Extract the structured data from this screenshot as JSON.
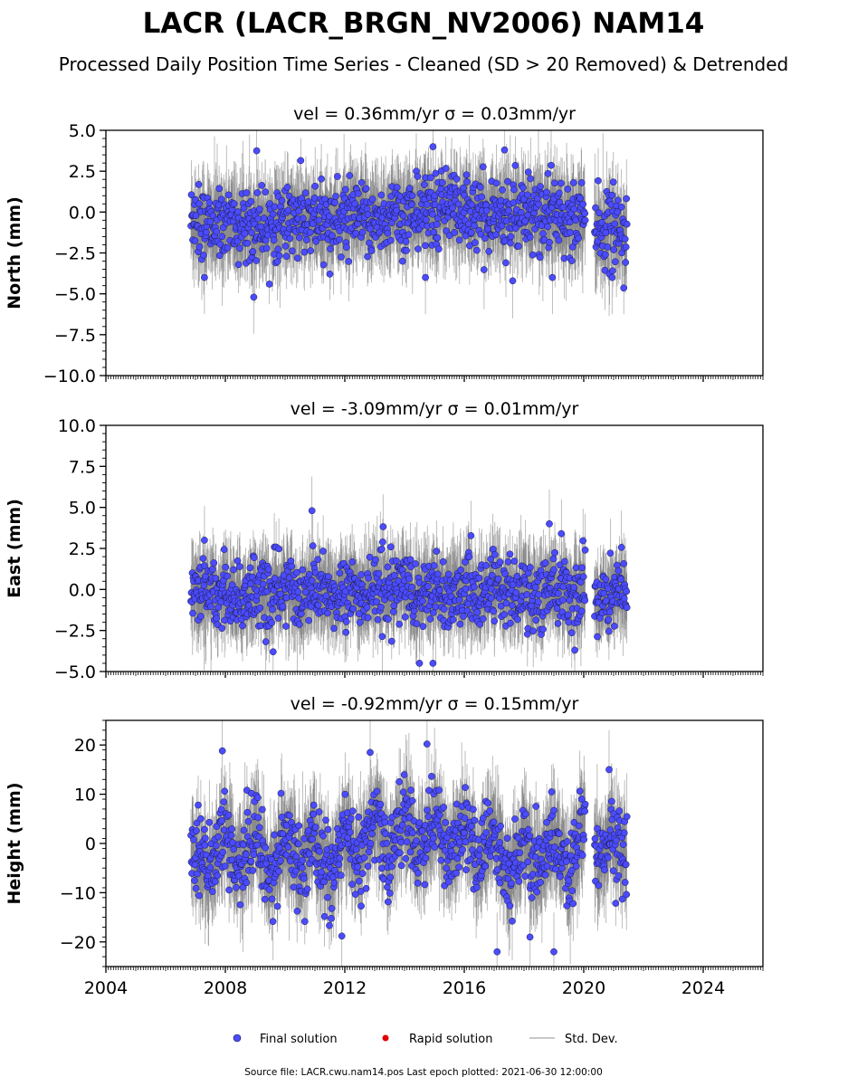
{
  "figure": {
    "title": "LACR (LACR_BRGN_NV2006) NAM14",
    "subtitle": "Processed Daily Position Time Series - Cleaned (SD > 20 Removed) & Detrended",
    "footer": "Source file: LACR.cwu.nam14.pos  Last epoch plotted: 2021-06-30 12:00:00"
  },
  "legend": {
    "placement": "bottom-center",
    "items": [
      {
        "label": "Final solution",
        "color": "#4b4bff"
      },
      {
        "label": "Rapid solution",
        "color": "#e00000"
      },
      {
        "label": "Std. Dev.",
        "color": "#c8c8c8"
      }
    ]
  },
  "colors": {
    "final_marker": "#4b4bff",
    "marker_edge": "#1a1a40",
    "std_dev_light": "#c8c8c8",
    "std_dev_dark": "#555555"
  },
  "chart_data": [
    {
      "type": "scatter",
      "title": "vel = 0.36mm/yr   σ = 0.03mm/yr",
      "ylabel": "North (mm)",
      "xlim": [
        2004,
        2026
      ],
      "ylim": [
        -10,
        5
      ],
      "yticks": [
        -10,
        -7.5,
        -5,
        -2.5,
        0,
        2.5,
        5
      ],
      "ytick_labels": [
        "−10.0",
        "−7.5",
        "−5.0",
        "−2.5",
        "0.0",
        "2.5",
        "5.0"
      ],
      "xticks": [
        2004,
        2008,
        2012,
        2016,
        2020,
        2024
      ],
      "xtick_labels": [
        "",
        "",
        "",
        "",
        "",
        ""
      ],
      "series": [
        {
          "values": [
            [
              2007.0,
              -0.5
            ],
            [
              2007.5,
              -0.9
            ],
            [
              2008.0,
              -0.6
            ],
            [
              2008.5,
              -0.8
            ],
            [
              2009.0,
              -0.7
            ],
            [
              2009.5,
              -0.6
            ],
            [
              2010.0,
              -0.7
            ],
            [
              2010.5,
              -0.5
            ],
            [
              2011.0,
              -0.8
            ],
            [
              2011.5,
              -0.6
            ],
            [
              2012.0,
              -0.4
            ],
            [
              2012.5,
              -0.5
            ],
            [
              2013.0,
              -0.3
            ],
            [
              2013.5,
              -0.4
            ],
            [
              2014.0,
              -0.2
            ],
            [
              2014.5,
              -0.1
            ],
            [
              2015.0,
              0.2
            ],
            [
              2015.5,
              0.3
            ],
            [
              2016.0,
              0.0
            ],
            [
              2016.5,
              -0.2
            ],
            [
              2017.0,
              -0.1
            ],
            [
              2017.5,
              0.1
            ],
            [
              2018.0,
              -0.3
            ],
            [
              2018.5,
              -0.1
            ],
            [
              2019.0,
              -0.2
            ],
            [
              2019.5,
              0.0
            ],
            [
              2020.0,
              -0.1
            ],
            [
              2020.5,
              -1.0
            ],
            [
              2021.0,
              -1.1
            ],
            [
              2021.4,
              -1.3
            ],
            [
              2009.05,
              3.75
            ],
            [
              2008.95,
              -5.2
            ],
            [
              2007.3,
              -4.0
            ],
            [
              2014.95,
              4.0
            ],
            [
              2017.35,
              3.8
            ],
            [
              2018.95,
              -4.0
            ],
            [
              2014.7,
              -4.0
            ],
            [
              2020.95,
              -4.0
            ]
          ]
        }
      ],
      "std_dev": 1.4
    },
    {
      "type": "scatter",
      "title": "vel = -3.09mm/yr   σ = 0.01mm/yr",
      "ylabel": "East (mm)",
      "xlim": [
        2004,
        2026
      ],
      "ylim": [
        -5,
        10
      ],
      "yticks": [
        -5,
        -2.5,
        0,
        2.5,
        5,
        7.5,
        10
      ],
      "ytick_labels": [
        "−5.0",
        "−2.5",
        "0.0",
        "2.5",
        "5.0",
        "7.5",
        "10.0"
      ],
      "xticks": [
        2004,
        2008,
        2012,
        2016,
        2020,
        2024
      ],
      "xtick_labels": [
        "",
        "",
        "",
        "",
        "",
        ""
      ],
      "series": [
        {
          "values": [
            [
              2007.0,
              -0.3
            ],
            [
              2007.5,
              -0.6
            ],
            [
              2008.0,
              0.1
            ],
            [
              2008.5,
              -0.7
            ],
            [
              2009.0,
              0.0
            ],
            [
              2009.5,
              -0.6
            ],
            [
              2010.0,
              0.2
            ],
            [
              2010.5,
              -0.7
            ],
            [
              2011.0,
              0.1
            ],
            [
              2011.5,
              -0.6
            ],
            [
              2012.0,
              0.2
            ],
            [
              2012.5,
              -0.5
            ],
            [
              2013.0,
              0.3
            ],
            [
              2013.5,
              -0.5
            ],
            [
              2014.0,
              0.4
            ],
            [
              2014.5,
              -0.4
            ],
            [
              2015.0,
              0.3
            ],
            [
              2015.5,
              -0.4
            ],
            [
              2016.0,
              0.2
            ],
            [
              2016.5,
              -0.6
            ],
            [
              2017.0,
              0.4
            ],
            [
              2017.5,
              -0.3
            ],
            [
              2018.0,
              0.1
            ],
            [
              2018.5,
              -0.5
            ],
            [
              2019.0,
              0.2
            ],
            [
              2019.5,
              -0.5
            ],
            [
              2020.0,
              0.1
            ],
            [
              2020.5,
              -0.7
            ],
            [
              2021.0,
              0.0
            ],
            [
              2021.4,
              -0.4
            ],
            [
              2010.9,
              4.8
            ],
            [
              2007.3,
              3.0
            ],
            [
              2018.85,
              4.0
            ],
            [
              2019.25,
              3.4
            ],
            [
              2014.5,
              -4.5
            ],
            [
              2014.95,
              -4.5
            ],
            [
              2009.6,
              -3.8
            ],
            [
              2019.7,
              -3.7
            ]
          ]
        }
      ],
      "std_dev": 1.3
    },
    {
      "type": "scatter",
      "title": "vel = -0.92mm/yr   σ = 0.15mm/yr",
      "ylabel": "Height (mm)",
      "xlim": [
        2004,
        2026
      ],
      "ylim": [
        -25,
        25
      ],
      "yticks": [
        -20,
        -10,
        0,
        10,
        20
      ],
      "ytick_labels": [
        "−20",
        "−10",
        "0",
        "10",
        "20"
      ],
      "xticks": [
        2004,
        2008,
        2012,
        2016,
        2020,
        2024
      ],
      "xtick_labels": [
        "2004",
        "2008",
        "2012",
        "2016",
        "2020",
        "2024"
      ],
      "series": [
        {
          "values": [
            [
              2007.0,
              -2
            ],
            [
              2007.5,
              -5
            ],
            [
              2008.0,
              4
            ],
            [
              2008.5,
              -6
            ],
            [
              2009.0,
              3
            ],
            [
              2009.5,
              -8
            ],
            [
              2010.0,
              2
            ],
            [
              2010.5,
              -6
            ],
            [
              2011.0,
              1
            ],
            [
              2011.5,
              -7
            ],
            [
              2012.0,
              2
            ],
            [
              2012.5,
              -4
            ],
            [
              2013.0,
              5
            ],
            [
              2013.5,
              -3
            ],
            [
              2014.0,
              6
            ],
            [
              2014.5,
              -2
            ],
            [
              2015.0,
              6
            ],
            [
              2015.5,
              -3
            ],
            [
              2016.0,
              5
            ],
            [
              2016.5,
              -4
            ],
            [
              2017.0,
              3
            ],
            [
              2017.5,
              -8
            ],
            [
              2018.0,
              1
            ],
            [
              2018.5,
              -6
            ],
            [
              2019.0,
              2
            ],
            [
              2019.5,
              -8
            ],
            [
              2020.0,
              3
            ],
            [
              2020.5,
              -4
            ],
            [
              2021.0,
              2
            ],
            [
              2021.4,
              -3
            ],
            [
              2007.9,
              18.8
            ],
            [
              2014.75,
              20.2
            ],
            [
              2012.85,
              18.5
            ],
            [
              2011.9,
              -18.8
            ],
            [
              2017.1,
              -22.0
            ],
            [
              2019.0,
              -22.0
            ],
            [
              2020.85,
              15.0
            ],
            [
              2018.2,
              -19.0
            ]
          ]
        }
      ],
      "std_dev": 5.0
    }
  ]
}
